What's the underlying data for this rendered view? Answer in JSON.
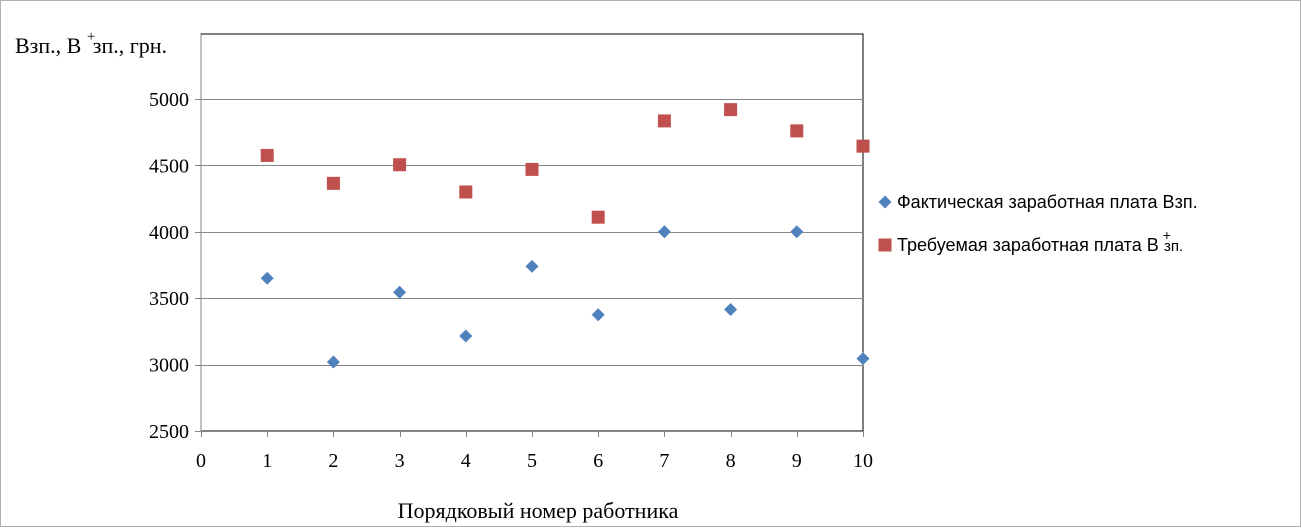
{
  "chart_data": {
    "type": "scatter",
    "ylabel_parts": [
      "Взп., В",
      "+",
      "зп., грн."
    ],
    "xlabel": "Порядковый номер работника",
    "xlim": [
      0,
      10
    ],
    "ylim": [
      2500,
      5000
    ],
    "yticks": [
      2500,
      3000,
      3500,
      4000,
      4500,
      5000
    ],
    "xticks": [
      0,
      1,
      2,
      3,
      4,
      5,
      6,
      7,
      8,
      9,
      10
    ],
    "grid": "horizontal",
    "legend": "right",
    "series": [
      {
        "legend_text": "Фактическая заработная плата Взп.",
        "legend_sup": "",
        "legend_sub": "",
        "marker": "diamond",
        "color": "#4f81bd",
        "x": [
          1,
          2,
          3,
          4,
          5,
          6,
          7,
          8,
          9,
          10
        ],
        "y": [
          3650,
          3020,
          3545,
          3215,
          3740,
          3375,
          4000,
          3415,
          4000,
          3045
        ]
      },
      {
        "legend_text": "Требуемая заработная плата В",
        "legend_sup": "+",
        "legend_sub": "зп.",
        "marker": "square",
        "color": "#c0504d",
        "x": [
          1,
          2,
          3,
          4,
          5,
          6,
          7,
          8,
          9,
          10
        ],
        "y": [
          4575,
          4365,
          4505,
          4300,
          4470,
          4110,
          4835,
          4920,
          4760,
          4645
        ]
      }
    ]
  }
}
